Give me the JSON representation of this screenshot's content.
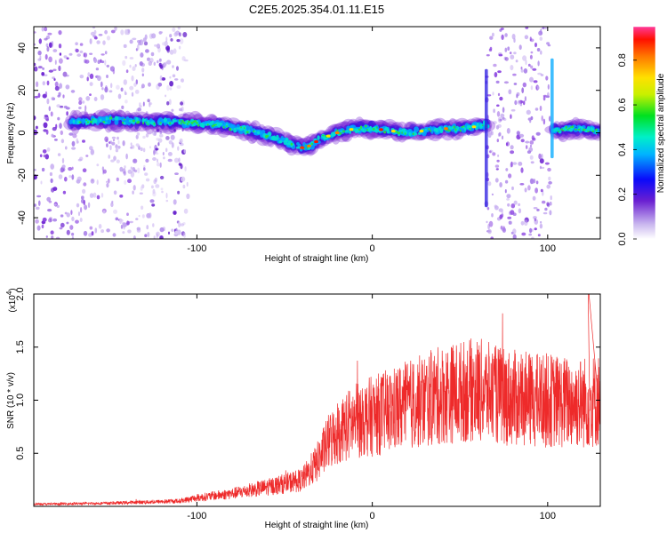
{
  "title": "C2E5.2025.354.01.11.E15",
  "chart_data": [
    {
      "type": "heatmap",
      "name": "spectrogram",
      "xlabel": "Height of straight line (km)",
      "ylabel": "Frequency (Hz)",
      "xlim": [
        -193,
        130
      ],
      "ylim": [
        -50,
        50
      ],
      "x_ticks": [
        -100,
        0,
        100
      ],
      "y_ticks": [
        -40,
        -20,
        0,
        20,
        40
      ],
      "colorbar": {
        "label": "Normalized spectral amplitude",
        "range": [
          0,
          0.95
        ],
        "ticks": [
          0.0,
          0.2,
          0.4,
          0.6,
          0.8
        ]
      },
      "ridge": {
        "description": "dominant frequency track",
        "x": [
          -170,
          -150,
          -130,
          -110,
          -90,
          -70,
          -60,
          -50,
          -40,
          -35,
          -30,
          -20,
          -10,
          0,
          10,
          20,
          30,
          40,
          50,
          60,
          65,
          105,
          115,
          130
        ],
        "y": [
          5,
          6,
          5,
          5,
          4,
          1,
          -1,
          -4,
          -7,
          -6,
          -3,
          0,
          2,
          2,
          1,
          0,
          1,
          2,
          2,
          3,
          4,
          1,
          2,
          1
        ]
      },
      "noise_bands_x": [
        [
          -193,
          -105
        ],
        [
          65,
          102
        ]
      ]
    },
    {
      "type": "line",
      "name": "snr",
      "xlabel": "Height of straight line (km)",
      "ylabel": "SNR (10 * v/v)",
      "multiplier": "(x10",
      "multiplier_exp": "4",
      "multiplier_close": ")",
      "xlim": [
        -193,
        130
      ],
      "ylim": [
        0,
        2.0
      ],
      "x_ticks": [
        -100,
        0,
        100
      ],
      "y_ticks": [
        0.5,
        1.0,
        1.5,
        2.0
      ],
      "envelope": {
        "x": [
          -193,
          -150,
          -110,
          -100,
          -80,
          -60,
          -40,
          -32,
          -25,
          -20,
          -10,
          0,
          10,
          20,
          30,
          40,
          50,
          60,
          70,
          80,
          90,
          100,
          110,
          120,
          130
        ],
        "y": [
          0.02,
          0.03,
          0.05,
          0.08,
          0.12,
          0.18,
          0.25,
          0.4,
          0.6,
          0.7,
          0.8,
          0.85,
          0.9,
          0.95,
          1.0,
          1.05,
          1.08,
          1.1,
          1.05,
          1.02,
          1.0,
          1.0,
          0.98,
          0.98,
          1.0
        ]
      },
      "color": "#ee2a2a"
    }
  ]
}
